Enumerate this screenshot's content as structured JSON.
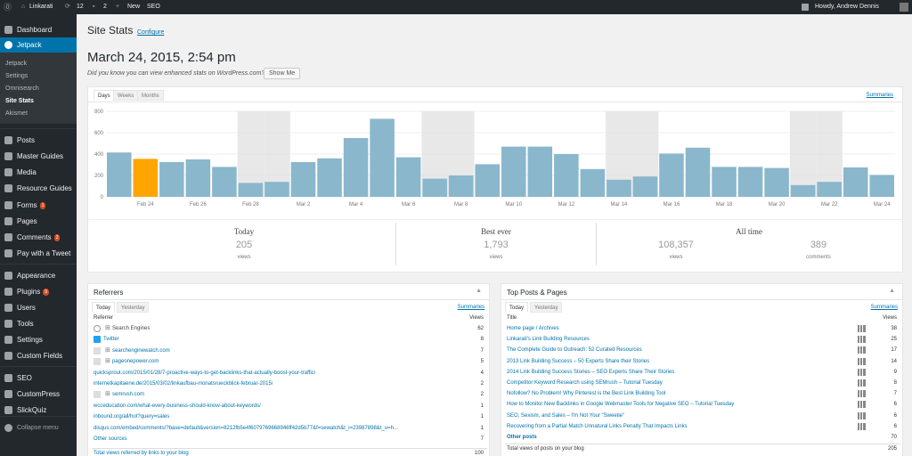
{
  "adminbar": {
    "site_name": "Linkarati",
    "updates_count": "12",
    "comments_count": "2",
    "new_label": "New",
    "seo_label": "SEO",
    "howdy": "Howdy, Andrew Dennis"
  },
  "menu": {
    "dashboard": "Dashboard",
    "jetpack": "Jetpack",
    "jetpack_sub": [
      "Jetpack",
      "Settings",
      "Omnisearch",
      "Site Stats",
      "Akismet"
    ],
    "items": [
      {
        "label": "Posts"
      },
      {
        "label": "Master Guides"
      },
      {
        "label": "Media"
      },
      {
        "label": "Resource Guides"
      },
      {
        "label": "Forms",
        "badge": "1"
      },
      {
        "label": "Pages"
      },
      {
        "label": "Comments",
        "badge": "2"
      },
      {
        "label": "Pay with a Tweet"
      },
      {
        "label": "Appearance"
      },
      {
        "label": "Plugins",
        "badge": "9"
      },
      {
        "label": "Users"
      },
      {
        "label": "Tools"
      },
      {
        "label": "Settings"
      },
      {
        "label": "Custom Fields"
      },
      {
        "label": "SEO"
      },
      {
        "label": "CustomPress"
      },
      {
        "label": "SlickQuiz"
      }
    ],
    "collapse": "Collapse menu"
  },
  "page": {
    "title": "Site Stats",
    "configure": "Configure",
    "datetime": "March 24, 2015, 2:54 pm",
    "notice": "Did you know you can view enhanced stats on WordPress.com?",
    "show_me": "Show Me"
  },
  "stats": {
    "tabs": [
      "Days",
      "Weeks",
      "Months"
    ],
    "summaries": "Summaries",
    "today_label": "Today",
    "today_views": "205",
    "today_views_unit": "views",
    "best_label": "Best ever",
    "best_views": "1,793",
    "best_views_unit": "views",
    "all_label": "All time",
    "all_views": "108,357",
    "all_views_unit": "views",
    "all_comments": "389",
    "all_comments_unit": "comments"
  },
  "colors": {
    "bar": "#8ab7cc",
    "highlight": "#ffa500",
    "weekend": "#e8e8e8",
    "menu_active": "#0073aa",
    "link": "#0073aa"
  },
  "chart_data": {
    "type": "bar",
    "categories": [
      "Feb 23",
      "Feb 24",
      "Feb 25",
      "Feb 26",
      "Feb 27",
      "Feb 28",
      "Mar 1",
      "Mar 2",
      "Mar 3",
      "Mar 4",
      "Mar 5",
      "Mar 6",
      "Mar 7",
      "Mar 8",
      "Mar 9",
      "Mar 10",
      "Mar 11",
      "Mar 12",
      "Mar 13",
      "Mar 14",
      "Mar 15",
      "Mar 16",
      "Mar 17",
      "Mar 18",
      "Mar 19",
      "Mar 20",
      "Mar 21",
      "Mar 22",
      "Mar 23",
      "Mar 24"
    ],
    "tick_labels": [
      "Feb 24",
      "Feb 26",
      "Feb 28",
      "Mar 2",
      "Mar 4",
      "Mar 6",
      "Mar 8",
      "Mar 10",
      "Mar 12",
      "Mar 14",
      "Mar 16",
      "Mar 18",
      "Mar 20",
      "Mar 22",
      "Mar 24"
    ],
    "values": [
      415,
      355,
      325,
      350,
      280,
      130,
      140,
      325,
      360,
      550,
      730,
      370,
      170,
      200,
      305,
      470,
      470,
      400,
      260,
      160,
      190,
      405,
      460,
      280,
      280,
      270,
      110,
      140,
      275,
      205
    ],
    "highlight_index": 1,
    "weekend_indices": [
      5,
      6,
      12,
      13,
      19,
      20,
      26,
      27
    ],
    "ylim": [
      0,
      800
    ],
    "yticks": [
      0,
      200,
      400,
      600,
      800
    ],
    "grid": true
  },
  "referrers": {
    "title": "Referrers",
    "tabs": [
      "Today",
      "Yesterday"
    ],
    "summaries": "Summaries",
    "col1": "Referrer",
    "col2": "Views",
    "rows": [
      {
        "name": "Search Engines",
        "views": "62",
        "icon": "search"
      },
      {
        "name": "Twitter",
        "views": "8",
        "icon": "twitter"
      },
      {
        "name": "searchenginewatch.com",
        "views": "7",
        "icon": "plus"
      },
      {
        "name": "pageonepower.com",
        "views": "5",
        "icon": "plus"
      },
      {
        "name": "quicksprout.com/2015/01/28/7-proactive-ways-to-get-backlinks-that-actually-boost-your-traffic/",
        "views": "4",
        "icon": "none"
      },
      {
        "name": "internetkapitaene.de/2015/03/02/linkaufbau-monatsrueckblick-februar-2015/",
        "views": "2",
        "icon": "none"
      },
      {
        "name": "semrush.com",
        "views": "2",
        "icon": "plus"
      },
      {
        "name": "wcceducation.com/what-every-business-should-know-about-keywords/",
        "views": "1",
        "icon": "none"
      },
      {
        "name": "inbound.org/all/hot?query=sales",
        "views": "1",
        "icon": "none"
      },
      {
        "name": "disqus.com/embed/comments/?base=default&version=8212fb5e4f6079769668946ff42d5b77&f=sewatch&t_i=23987898&t_u=h...",
        "views": "1",
        "icon": "none"
      },
      {
        "name": "Other sources",
        "views": "7",
        "icon": "none"
      }
    ],
    "total_label": "Total views referred by links to your blog",
    "total": "100"
  },
  "top_posts": {
    "title": "Top Posts & Pages",
    "tabs": [
      "Today",
      "Yesterday"
    ],
    "summaries": "Summaries",
    "col1": "Title",
    "col2": "Views",
    "rows": [
      {
        "name": "Home page / Archives",
        "views": "38"
      },
      {
        "name": "Linkarati's Link Building Resources",
        "views": "25"
      },
      {
        "name": "The Complete Guide to Outreach: 52 Curated Resources",
        "views": "17"
      },
      {
        "name": "2013 Link Building Success – 50 Experts Share their Stories",
        "views": "14"
      },
      {
        "name": "2014 Link Building Success Stories – SEO Experts Share Their Stories",
        "views": "9"
      },
      {
        "name": "Competitor Keyword Research using SEMrush – Tutorial Tuesday",
        "views": "8"
      },
      {
        "name": "Nofollow? No Problem! Why Pinterest is the Best Link Building Tool",
        "views": "7"
      },
      {
        "name": "How to Monitor New Backlinks in Google Webmaster Tools for Negative SEO – Tutorial Tuesday",
        "views": "6"
      },
      {
        "name": "SEO, Sexism, and Sales – I'm Not Your \"Sweetie\"",
        "views": "6"
      },
      {
        "name": "Recovering from a Partial Match Unnatural Links Penalty That Impacts Links",
        "views": "6"
      }
    ],
    "other_posts": "Other posts",
    "other_views": "70",
    "total_label": "Total views of posts on your blog",
    "total": "205"
  }
}
